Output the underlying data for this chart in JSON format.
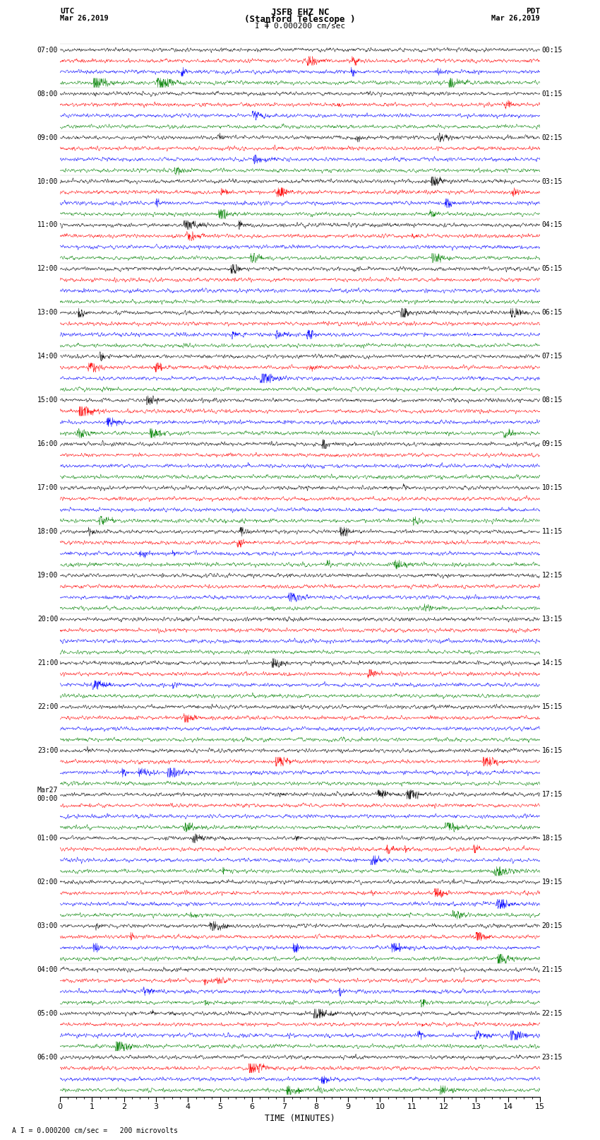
{
  "title_line1": "JSFB EHZ NC",
  "title_line2": "(Stanford Telescope )",
  "scale_label": "I = 0.000200 cm/sec",
  "footer_label": "A I = 0.000200 cm/sec =   200 microvolts",
  "left_label_top": "UTC",
  "left_label_date": "Mar 26,2019",
  "right_label_top": "PDT",
  "right_label_date": "Mar 26,2019",
  "xlabel": "TIME (MINUTES)",
  "utc_times": [
    "07:00",
    "08:00",
    "09:00",
    "10:00",
    "11:00",
    "12:00",
    "13:00",
    "14:00",
    "15:00",
    "16:00",
    "17:00",
    "18:00",
    "19:00",
    "20:00",
    "21:00",
    "22:00",
    "23:00",
    "Mar27\n00:00",
    "01:00",
    "02:00",
    "03:00",
    "04:00",
    "05:00",
    "06:00"
  ],
  "pdt_times": [
    "00:15",
    "01:15",
    "02:15",
    "03:15",
    "04:15",
    "05:15",
    "06:15",
    "07:15",
    "08:15",
    "09:15",
    "10:15",
    "11:15",
    "12:15",
    "13:15",
    "14:15",
    "15:15",
    "16:15",
    "17:15",
    "18:15",
    "19:15",
    "20:15",
    "21:15",
    "22:15",
    "23:15"
  ],
  "colors": [
    "black",
    "red",
    "blue",
    "green"
  ],
  "n_groups": 24,
  "traces_per_group": 4,
  "n_cols": 1800,
  "x_min": 0,
  "x_max": 15,
  "bg_color": "white",
  "noise_seed": 42
}
